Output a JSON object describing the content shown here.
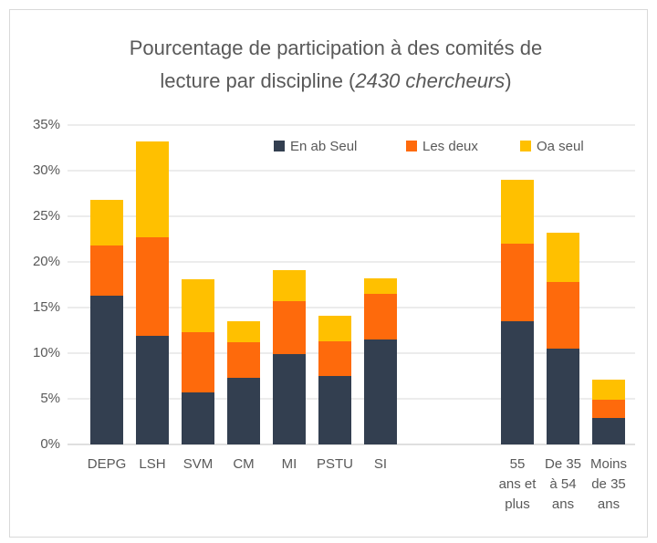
{
  "chart_data": {
    "type": "stacked_bar",
    "title": [
      "Pourcentage de participation à des comités de",
      "lecture par discipline (",
      "2430 chercheurs",
      ")"
    ],
    "categories": [
      "DEPG",
      "LSH",
      "SVM",
      "CM",
      "MI",
      "PSTU",
      "SI",
      null,
      null,
      "55 ans et plus",
      "De 35 à 54 ans",
      "Moins de 35 ans"
    ],
    "series": [
      {
        "name": "En ab Seul",
        "color": "#333f50",
        "values": [
          16.3,
          11.9,
          5.7,
          7.3,
          9.9,
          7.5,
          11.5,
          null,
          null,
          13.5,
          10.5,
          2.9
        ]
      },
      {
        "name": "Les deux",
        "color": "#fe6a0c",
        "values": [
          5.5,
          10.8,
          6.6,
          3.9,
          5.8,
          3.8,
          5.0,
          null,
          null,
          8.5,
          7.3,
          2.0
        ]
      },
      {
        "name": "Oa seul",
        "color": "#ffc000",
        "values": [
          5.0,
          10.5,
          5.8,
          2.3,
          3.4,
          2.8,
          1.7,
          null,
          null,
          7.0,
          5.4,
          2.2
        ]
      }
    ],
    "ylim": [
      0,
      35
    ],
    "yticks": [
      {
        "value": 0,
        "label": "0%"
      },
      {
        "value": 5,
        "label": "5%"
      },
      {
        "value": 10,
        "label": "10%"
      },
      {
        "value": 15,
        "label": "15%"
      },
      {
        "value": 20,
        "label": "20%"
      },
      {
        "value": 25,
        "label": "25%"
      },
      {
        "value": 30,
        "label": "30%"
      },
      {
        "value": 35,
        "label": "35%"
      }
    ],
    "grid": true,
    "legend": "top"
  }
}
